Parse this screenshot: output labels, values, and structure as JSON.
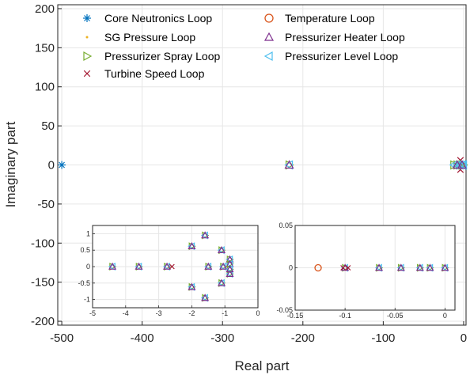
{
  "chart_data": {
    "type": "scatter",
    "xlabel": "Real part",
    "ylabel": "Imaginary part",
    "xlim": [
      -505,
      3
    ],
    "ylim": [
      -205,
      205
    ],
    "xticks": [
      -500,
      -400,
      -300,
      -200,
      -100,
      0
    ],
    "yticks": [
      200,
      150,
      100,
      50,
      0,
      -50,
      -100,
      -150,
      -200
    ],
    "grid": true,
    "legend_position": "top, two columns",
    "series": [
      {
        "name": "Core Neutronics Loop",
        "marker": "asterisk",
        "color": "#0072bd"
      },
      {
        "name": "Temperature Loop",
        "marker": "circle",
        "color": "#d95319"
      },
      {
        "name": "SG Pressure Loop",
        "marker": "dot",
        "color": "#edb120"
      },
      {
        "name": "Pressurizer Heater Loop",
        "marker": "triangle-up",
        "color": "#7e2f8e"
      },
      {
        "name": "Pressurizer Spray Loop",
        "marker": "triangle-right",
        "color": "#77ac30"
      },
      {
        "name": "Pressurizer Level Loop",
        "marker": "triangle-left",
        "color": "#4dbeee"
      },
      {
        "name": "Turbine Speed Loop",
        "marker": "x",
        "color": "#a2142f"
      }
    ],
    "points": [
      {
        "series": "Core Neutronics Loop",
        "x": -500,
        "y": 0
      },
      {
        "series": "Pressurizer Spray Loop",
        "x": -217,
        "y": 0
      },
      {
        "series": "Pressurizer Level Loop",
        "x": -217,
        "y": 0
      },
      {
        "series": "Pressurizer Heater Loop",
        "x": -217,
        "y": 0
      },
      {
        "series": "Turbine Speed Loop",
        "x": -4,
        "y": 6
      },
      {
        "series": "Turbine Speed Loop",
        "x": -4,
        "y": -6
      },
      {
        "series": "Turbine Speed Loop",
        "x": -2.7,
        "y": 0
      },
      {
        "series": "Pressurizer Spray Loop",
        "x": -12,
        "y": 0
      },
      {
        "series": "Pressurizer Spray Loop",
        "x": -8,
        "y": 0
      },
      {
        "series": "Pressurizer Spray Loop",
        "x": -5,
        "y": 0
      },
      {
        "series": "Pressurizer Spray Loop",
        "x": -2,
        "y": 0
      },
      {
        "series": "Pressurizer Spray Loop",
        "x": -1,
        "y": 0
      },
      {
        "series": "Pressurizer Spray Loop",
        "x": -0.3,
        "y": 0
      },
      {
        "series": "Pressurizer Level Loop",
        "x": -12,
        "y": 0
      },
      {
        "series": "Pressurizer Level Loop",
        "x": -8,
        "y": 0
      },
      {
        "series": "Pressurizer Level Loop",
        "x": -5,
        "y": 0
      },
      {
        "series": "Pressurizer Level Loop",
        "x": -2,
        "y": 0
      },
      {
        "series": "Pressurizer Level Loop",
        "x": -1,
        "y": 0
      },
      {
        "series": "Pressurizer Level Loop",
        "x": -0.3,
        "y": 0
      },
      {
        "series": "Pressurizer Heater Loop",
        "x": -8,
        "y": 0
      },
      {
        "series": "Pressurizer Heater Loop",
        "x": -2,
        "y": 0
      }
    ],
    "insets": [
      {
        "xlim": [
          -5,
          0
        ],
        "ylim": [
          -1.25,
          1.25
        ],
        "xticks": [
          -5,
          -4,
          -3,
          -2,
          -1,
          0
        ],
        "yticks": [
          1,
          0.5,
          0,
          -0.5,
          -1
        ],
        "points": [
          {
            "x": -4.4,
            "y": 0
          },
          {
            "x": -3.6,
            "y": 0
          },
          {
            "x": -2.75,
            "y": 0
          },
          {
            "x": -2.0,
            "y": 0.62
          },
          {
            "x": -2.0,
            "y": -0.62
          },
          {
            "x": -1.6,
            "y": 0.95
          },
          {
            "x": -1.6,
            "y": -0.95
          },
          {
            "x": -1.5,
            "y": 0
          },
          {
            "x": -1.1,
            "y": 0.5
          },
          {
            "x": -1.1,
            "y": -0.5
          },
          {
            "x": -1.05,
            "y": 0
          },
          {
            "x": -0.85,
            "y": 0.22
          },
          {
            "x": -0.85,
            "y": -0.22
          },
          {
            "x": -0.85,
            "y": 0.08
          },
          {
            "x": -0.85,
            "y": -0.08
          }
        ],
        "turbine_points": [
          {
            "x": -2.6,
            "y": 0
          }
        ]
      },
      {
        "xlim": [
          -0.15,
          0.01
        ],
        "ylim": [
          -0.05,
          0.05
        ],
        "xticks": [
          -0.15,
          -0.1,
          -0.05,
          0
        ],
        "yticks": [
          0.05,
          0,
          -0.05
        ],
        "points": [
          {
            "x": -0.1,
            "y": 0
          },
          {
            "x": -0.066,
            "y": 0
          },
          {
            "x": -0.044,
            "y": 0
          },
          {
            "x": -0.025,
            "y": 0
          },
          {
            "x": -0.015,
            "y": 0
          },
          {
            "x": -0.0,
            "y": 0
          }
        ],
        "turbine_points": [
          {
            "x": -0.097,
            "y": 0
          },
          {
            "x": -0.102,
            "y": 0
          }
        ],
        "temperature_points": [
          {
            "x": -0.127,
            "y": 0
          }
        ]
      }
    ]
  }
}
